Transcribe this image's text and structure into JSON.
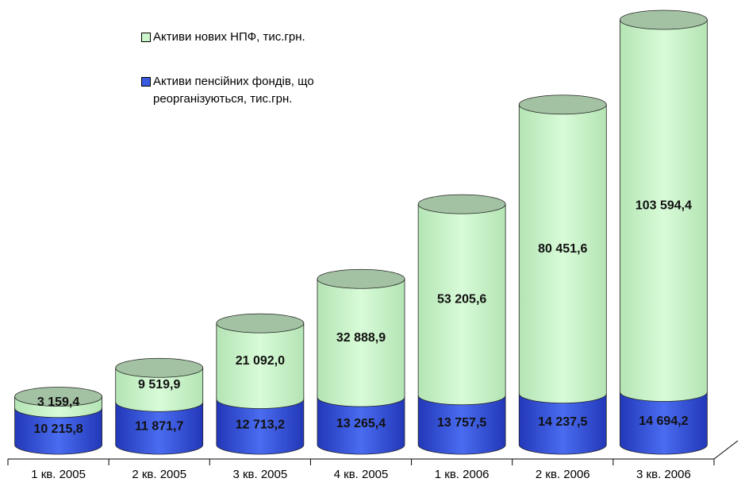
{
  "chart_data": {
    "type": "cylinder-stacked",
    "categories": [
      "1 кв. 2005",
      "2 кв. 2005",
      "3 кв. 2005",
      "4 кв. 2005",
      "1 кв. 2006",
      "2 кв. 2006",
      "3 кв. 2006"
    ],
    "series": [
      {
        "name": "Активи пенсійних фондів, що реорганізуються, тис.грн.",
        "color": "#3a5ae0",
        "values": [
          10215.8,
          11871.7,
          12713.2,
          13265.4,
          13757.5,
          14237.5,
          14694.2
        ],
        "value_labels": [
          "10 215,8",
          "11 871,7",
          "12 713,2",
          "13 265,4",
          "13 757,5",
          "14 237,5",
          "14 694,2"
        ]
      },
      {
        "name": "Активи нових НПФ, тис.грн.",
        "color": "#ccf5cc",
        "values": [
          3159.4,
          9519.9,
          21092.0,
          32888.9,
          53205.6,
          80451.6,
          103594.4
        ],
        "value_labels": [
          "3 159,4",
          "9 519,9",
          "21 092,0",
          "32 888,9",
          "53 205,6",
          "80 451,6",
          "103 594,4"
        ]
      }
    ]
  }
}
